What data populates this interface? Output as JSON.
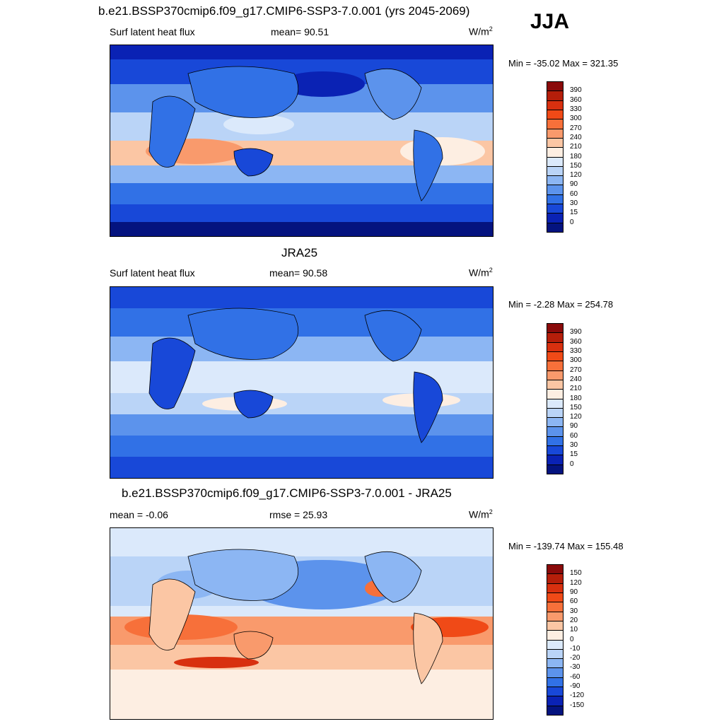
{
  "season": "JJA",
  "panels": [
    {
      "title": "b.e21.BSSP370cmip6.f09_g17.CMIP6-SSP3-7.0.001 (yrs 2045-2069)",
      "left_label": "Surf latent heat flux",
      "center_label": "mean=  90.51",
      "unit_base": "W/m",
      "unit_exp": "2",
      "minmax": "Min = -35.02 Max = 321.35",
      "colorbar": {
        "labels": [
          "390",
          "360",
          "330",
          "300",
          "270",
          "240",
          "210",
          "180",
          "150",
          "120",
          "90",
          "60",
          "30",
          "15",
          "0"
        ],
        "colors": [
          "#8a0a0a",
          "#b51e0a",
          "#d8300f",
          "#f04a17",
          "#f7703a",
          "#f99a6c",
          "#fbc6a4",
          "#fdeee2",
          "#dbe9fb",
          "#bad4f7",
          "#8cb6f3",
          "#5c93ec",
          "#3171e6",
          "#1848d8",
          "#0a22b4",
          "#04137f"
        ]
      }
    },
    {
      "title": "JRA25",
      "left_label": "Surf latent heat flux",
      "center_label": "mean=  90.58",
      "unit_base": "W/m",
      "unit_exp": "2",
      "minmax": "Min =  -2.28 Max = 254.78",
      "colorbar": {
        "labels": [
          "390",
          "360",
          "330",
          "300",
          "270",
          "240",
          "210",
          "180",
          "150",
          "120",
          "90",
          "60",
          "30",
          "15",
          "0"
        ],
        "colors": [
          "#8a0a0a",
          "#b51e0a",
          "#d8300f",
          "#f04a17",
          "#f7703a",
          "#f99a6c",
          "#fbc6a4",
          "#fdeee2",
          "#dbe9fb",
          "#bad4f7",
          "#8cb6f3",
          "#5c93ec",
          "#3171e6",
          "#1848d8",
          "#0a22b4",
          "#04137f"
        ]
      }
    },
    {
      "title": "b.e21.BSSP370cmip6.f09_g17.CMIP6-SSP3-7.0.001 - JRA25",
      "left_label": "mean =  -0.06",
      "center_label": "rmse =  25.93",
      "unit_base": "W/m",
      "unit_exp": "2",
      "minmax": "Min = -139.74 Max = 155.48",
      "colorbar": {
        "labels": [
          "150",
          "120",
          "90",
          "60",
          "30",
          "20",
          "10",
          "0",
          "-10",
          "-20",
          "-30",
          "-60",
          "-90",
          "-120",
          "-150"
        ],
        "colors": [
          "#8a0a0a",
          "#b51e0a",
          "#d8300f",
          "#f04a17",
          "#f7703a",
          "#f99a6c",
          "#fbc6a4",
          "#fdeee2",
          "#dbe9fb",
          "#bad4f7",
          "#8cb6f3",
          "#5c93ec",
          "#3171e6",
          "#1848d8",
          "#0a22b4",
          "#04137f"
        ]
      }
    }
  ],
  "chart_data": [
    {
      "type": "heatmap",
      "title": "b.e21.BSSP370cmip6.f09_g17.CMIP6-SSP3-7.0.001 (yrs 2045-2069)",
      "variable": "Surf latent heat flux",
      "units": "W/m2",
      "mean": 90.51,
      "min": -35.02,
      "max": 321.35,
      "levels": [
        0,
        15,
        30,
        60,
        90,
        120,
        150,
        180,
        210,
        240,
        270,
        300,
        330,
        360,
        390
      ]
    },
    {
      "type": "heatmap",
      "title": "JRA25",
      "variable": "Surf latent heat flux",
      "units": "W/m2",
      "mean": 90.58,
      "min": -2.28,
      "max": 254.78,
      "levels": [
        0,
        15,
        30,
        60,
        90,
        120,
        150,
        180,
        210,
        240,
        270,
        300,
        330,
        360,
        390
      ]
    },
    {
      "type": "heatmap",
      "title": "b.e21.BSSP370cmip6.f09_g17.CMIP6-SSP3-7.0.001 - JRA25",
      "units": "W/m2",
      "mean": -0.06,
      "rmse": 25.93,
      "min": -139.74,
      "max": 155.48,
      "levels": [
        -150,
        -120,
        -90,
        -60,
        -30,
        -20,
        -10,
        0,
        10,
        20,
        30,
        60,
        90,
        120,
        150
      ]
    }
  ]
}
